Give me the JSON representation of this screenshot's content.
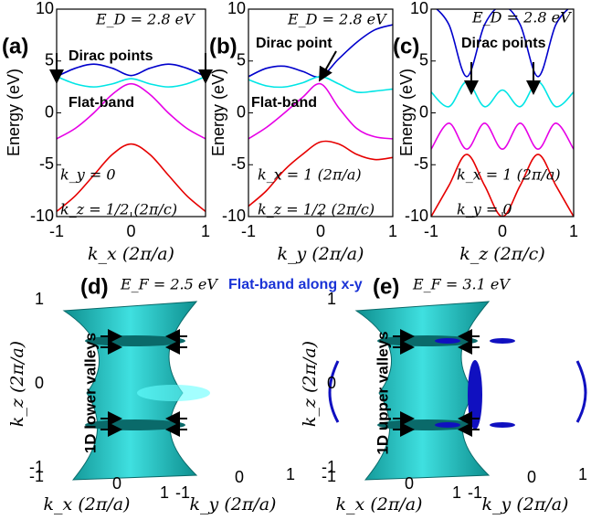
{
  "chart_data": [
    {
      "type": "line",
      "panel_label": "(a)",
      "xlabel": "k_x (2π/a)",
      "ylabel": "Energy (eV)",
      "annotations": [
        "E_D = 2.8 eV",
        "Dirac points",
        "Flat-band",
        "k_y = 0",
        "k_z = 1/2 (2π/c)"
      ],
      "x": [
        -1,
        -0.75,
        -0.5,
        -0.25,
        0,
        0.25,
        0.5,
        0.75,
        1
      ],
      "series": [
        {
          "color": "#0000cc",
          "values": [
            3.5,
            4.3,
            4.7,
            4.3,
            3.6,
            4.3,
            4.7,
            4.3,
            3.5
          ]
        },
        {
          "color": "#00e5e5",
          "values": [
            3.5,
            2.8,
            2.5,
            2.8,
            3.3,
            2.8,
            2.5,
            2.8,
            3.5
          ]
        },
        {
          "color": "#e600e6",
          "values": [
            -2.5,
            -1.5,
            0,
            1.8,
            2.8,
            1.8,
            0,
            -1.5,
            -2.5
          ]
        },
        {
          "color": "#e60000",
          "values": [
            -9.5,
            -8,
            -6,
            -4,
            -3,
            -4,
            -6,
            -8,
            -9.5
          ]
        }
      ],
      "xlim": [
        -1,
        1
      ],
      "xticks": [
        -1,
        0,
        1
      ],
      "ylim": [
        -10,
        10
      ],
      "yticks": [
        -10,
        -5,
        0,
        5,
        10
      ]
    },
    {
      "type": "line",
      "panel_label": "(b)",
      "xlabel": "k_y (2π/a)",
      "ylabel": "Energy (eV)",
      "annotations": [
        "E_D = 2.8 eV",
        "Dirac point",
        "Flat-band",
        "k_x = 1 (2π/a)",
        "k_z = 1/2 (2π/c)"
      ],
      "x": [
        -1,
        -0.75,
        -0.5,
        -0.25,
        0,
        0.25,
        0.5,
        0.75,
        1
      ],
      "series": [
        {
          "color": "#0000cc",
          "values": [
            3.5,
            4.3,
            4.5,
            4,
            3.5,
            5.2,
            6.8,
            8,
            8.5
          ]
        },
        {
          "color": "#00e5e5",
          "values": [
            3.2,
            2.6,
            2.5,
            2.9,
            3.5,
            2.8,
            2,
            2.1,
            2.3
          ]
        },
        {
          "color": "#e600e6",
          "values": [
            -2.5,
            -1.4,
            0,
            1.5,
            2.8,
            0.5,
            -1.5,
            -2.3,
            -2.5
          ]
        },
        {
          "color": "#e60000",
          "values": [
            -9,
            -7.5,
            -5.5,
            -4,
            -2.8,
            -3,
            -4,
            -4.5,
            -4.3
          ]
        }
      ],
      "xlim": [
        -1,
        1
      ],
      "xticks": [
        -1,
        0,
        1
      ],
      "ylim": [
        -10,
        10
      ],
      "yticks": [
        -10,
        -5,
        0,
        5,
        10
      ]
    },
    {
      "type": "line",
      "panel_label": "(c)",
      "xlabel": "k_z (2π/c)",
      "ylabel": "Energy (eV)",
      "annotations": [
        "E_D = 2.8 eV",
        "Dirac points",
        "k_x = 1 (2π/a)",
        "k_y = 0"
      ],
      "x": [
        -1,
        -0.75,
        -0.5,
        -0.25,
        0,
        0.25,
        0.5,
        0.75,
        1
      ],
      "series": [
        {
          "color": "#0000cc",
          "values": [
            10.5,
            8.5,
            3.5,
            8.5,
            10.3,
            8.5,
            3.5,
            8.5,
            10.5
          ]
        },
        {
          "color": "#00e5e5",
          "values": [
            2,
            0.6,
            3,
            0.6,
            2.2,
            0.6,
            3,
            0.6,
            2
          ]
        },
        {
          "color": "#e600e6",
          "values": [
            -3.5,
            -1,
            -3.5,
            -1,
            -3.5,
            -1,
            -3.5,
            -1,
            -3.5
          ]
        },
        {
          "color": "#e60000",
          "values": [
            -10,
            -7,
            -4,
            -7,
            -10,
            -7,
            -4,
            -7,
            -10
          ]
        }
      ],
      "xlim": [
        -1,
        1
      ],
      "xticks": [
        -1,
        0,
        1
      ],
      "ylim": [
        -10,
        10
      ],
      "yticks": [
        -10,
        -5,
        0,
        5,
        10
      ]
    }
  ],
  "heading": "Flat-band along x-y",
  "surface_panels": [
    {
      "panel_label": "(d)",
      "energy": "E_F = 2.5 eV",
      "valleys": "1D lower valleys",
      "z_label": "k_z (2π/a)",
      "x_label": "k_x (2π/a)",
      "y_label": "k_y (2π/a)",
      "z_ticks": [
        1,
        0,
        -1
      ],
      "x_ticks": [
        -1,
        0,
        1
      ],
      "y_ticks": [
        -1,
        0,
        1
      ]
    },
    {
      "panel_label": "(e)",
      "energy": "E_F = 3.1 eV",
      "valleys": "1D upper valleys",
      "z_label": "k_z (2π/a)",
      "x_label": "k_x (2π/a)",
      "y_label": "k_y (2π/a)",
      "z_ticks": [
        1,
        0,
        -1
      ],
      "x_ticks": [
        -1,
        0,
        1
      ],
      "y_ticks": [
        -1,
        0,
        1
      ]
    }
  ]
}
